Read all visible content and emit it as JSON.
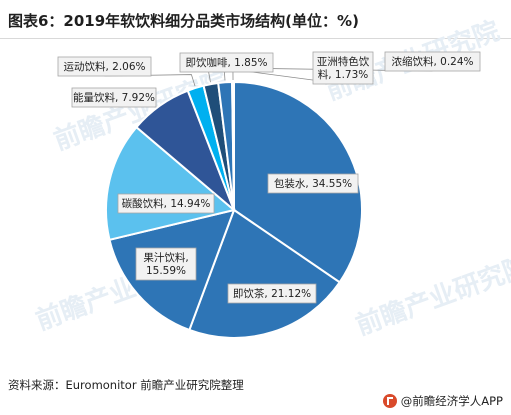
{
  "title": "图表6：2019年软饮料细分品类市场结构(单位：%)",
  "source": "资料来源：Euromonitor 前瞻产业研究院整理",
  "brand": "@前瞻经济学人APP",
  "watermark": "前瞻产业研究院",
  "chart_data": {
    "type": "pie",
    "title": "图表6：2019年软饮料细分品类市场结构(单位：%)",
    "unit": "%",
    "start_angle_deg": 0,
    "direction": "clockwise",
    "slices": [
      {
        "label": "包装水",
        "value": 34.55,
        "text": [
          "包装水, 34.55%"
        ],
        "color": "#2e75b6"
      },
      {
        "label": "即饮茶",
        "value": 21.12,
        "text": [
          "即饮茶, 21.12%"
        ],
        "color": "#2e75b6"
      },
      {
        "label": "果汁饮料",
        "value": 15.59,
        "text": [
          "果汁饮料,",
          "15.59%"
        ],
        "color": "#2e75b6"
      },
      {
        "label": "碳酸饮料",
        "value": 14.94,
        "text": [
          "碳酸饮料, 14.94%"
        ],
        "color": "#5bc1ee"
      },
      {
        "label": "能量饮料",
        "value": 7.92,
        "text": [
          "能量饮料, 7.92%"
        ],
        "color": "#2f5597"
      },
      {
        "label": "运动饮料",
        "value": 2.06,
        "text": [
          "运动饮料, 2.06%"
        ],
        "color": "#00b0f0"
      },
      {
        "label": "即饮咖啡",
        "value": 1.85,
        "text": [
          "即饮咖啡, 1.85%"
        ],
        "color": "#1f4e79"
      },
      {
        "label": "亚洲特色饮料",
        "value": 1.73,
        "text": [
          "亚洲特色饮",
          "料, 1.73%"
        ],
        "color": "#2e75b6"
      },
      {
        "label": "浓缩饮料",
        "value": 0.24,
        "text": [
          "浓缩饮料, 0.24%"
        ],
        "color": "#8fd3f0"
      }
    ]
  }
}
